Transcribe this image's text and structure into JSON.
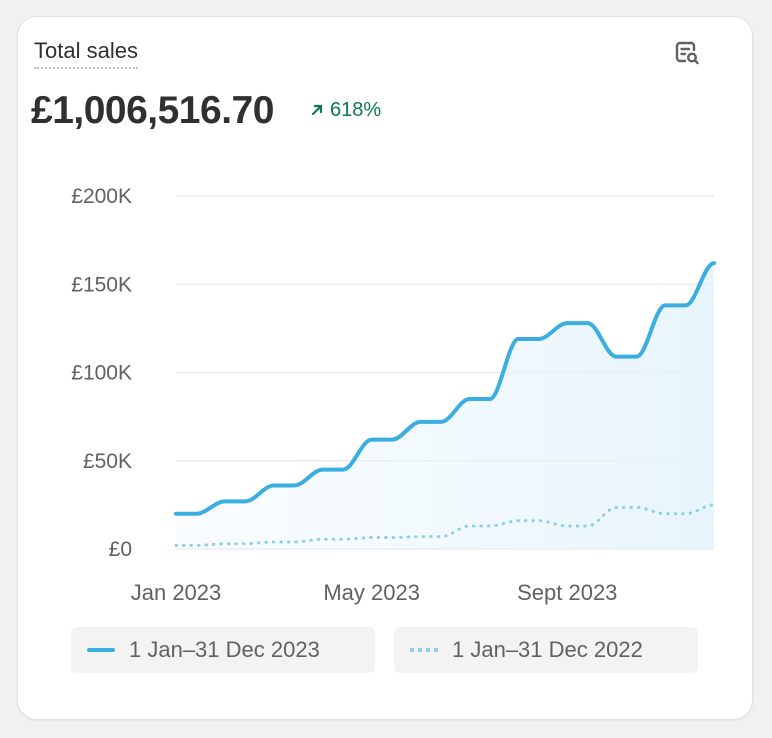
{
  "card": {
    "title": "Total sales",
    "total_value": "£1,006,516.70",
    "change": "618%",
    "change_color": "#0c7a4b",
    "change_icon": "arrow-up-right-icon",
    "action_icon": "report-search-icon"
  },
  "chart_data": {
    "type": "line",
    "ylim": [
      0,
      200000
    ],
    "y_ticks": [
      {
        "value": 0,
        "label": "£0"
      },
      {
        "value": 50000,
        "label": "£50K"
      },
      {
        "value": 100000,
        "label": "£100K"
      },
      {
        "value": 150000,
        "label": "£150K"
      },
      {
        "value": 200000,
        "label": "£200K"
      }
    ],
    "x_ticks": [
      {
        "index": 0,
        "label": "Jan 2023"
      },
      {
        "index": 4,
        "label": "May 2023"
      },
      {
        "index": 8,
        "label": "Sept 2023"
      }
    ],
    "grid": true,
    "series": [
      {
        "name": "1 Jan–31 Dec 2023",
        "color": "#3aaee0",
        "style": "solid",
        "fill": true,
        "values": [
          20000,
          27000,
          36000,
          45000,
          62000,
          72000,
          85000,
          119000,
          128000,
          109000,
          138000,
          162000
        ]
      },
      {
        "name": "1 Jan–31 Dec 2022",
        "color": "#8ccfeb",
        "style": "dotted",
        "fill": false,
        "values": [
          2000,
          3000,
          4000,
          5500,
          6500,
          7000,
          13000,
          16000,
          13000,
          23500,
          20000,
          25000
        ]
      }
    ],
    "legend_position": "bottom"
  }
}
